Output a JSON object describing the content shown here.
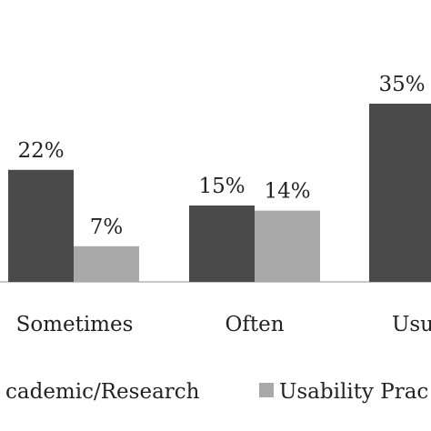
{
  "chart_data": {
    "type": "bar",
    "title": "",
    "xlabel": "",
    "ylabel": "",
    "categories": [
      "Sometimes",
      "Often",
      "Usu"
    ],
    "ylim": [
      0,
      40
    ],
    "grid": false,
    "legend_position": "bottom",
    "series": [
      {
        "name": "cademic/Research",
        "color": "#4a4a4a",
        "values": [
          22,
          15,
          35
        ],
        "labels": [
          "22%",
          "15%",
          "35%"
        ]
      },
      {
        "name": "Usability Prac",
        "color": "#a9a9a9",
        "values": [
          7,
          14,
          null
        ],
        "labels": [
          "7%",
          "14%",
          ""
        ]
      }
    ]
  }
}
